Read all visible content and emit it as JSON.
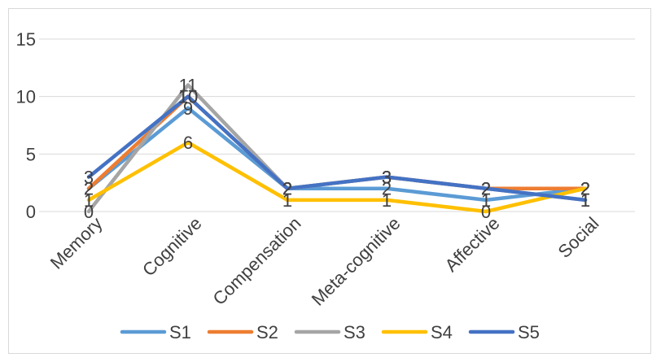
{
  "chart_data": {
    "type": "line",
    "title": "",
    "xlabel": "",
    "ylabel": "",
    "categories": [
      "Memory",
      "Cognitive",
      "Compensation",
      "Meta-cognitive",
      "Affective",
      "Social"
    ],
    "ylim": [
      0,
      15
    ],
    "yticks": [
      0,
      5,
      10,
      15
    ],
    "grid": true,
    "legend": "bottom",
    "data_labels": true,
    "series": [
      {
        "name": "S1",
        "color": "#5b9bd5",
        "values": [
          2,
          9,
          2,
          2,
          1,
          2
        ]
      },
      {
        "name": "S2",
        "color": "#ed7d31",
        "values": [
          2,
          10,
          2,
          3,
          2,
          2
        ]
      },
      {
        "name": "S3",
        "color": "#a5a5a5",
        "values": [
          0,
          11,
          2,
          3,
          2,
          1
        ]
      },
      {
        "name": "S4",
        "color": "#ffc000",
        "values": [
          1,
          6,
          1,
          1,
          0,
          2
        ]
      },
      {
        "name": "S5",
        "color": "#4472c4",
        "values": [
          3,
          10,
          2,
          3,
          2,
          1
        ]
      }
    ]
  }
}
